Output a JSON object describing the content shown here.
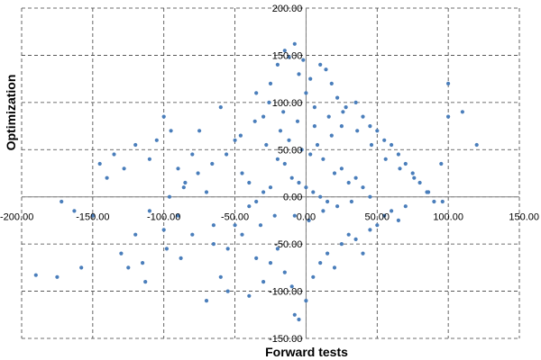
{
  "chart_data": {
    "type": "scatter",
    "xlabel": "Forward tests",
    "ylabel": "Optimization",
    "xlim": [
      -200,
      150
    ],
    "ylim": [
      -150,
      200
    ],
    "x_ticks": [
      -200,
      -150,
      -100,
      -50,
      0,
      50,
      100,
      150
    ],
    "y_ticks": [
      -150,
      -100,
      -50,
      0,
      50,
      100,
      150,
      200
    ],
    "x_tick_labels": [
      "-200.00",
      "-150.00",
      "-100.00",
      "-50.00",
      "0.00",
      "50.00",
      "100.00",
      "150.00"
    ],
    "y_tick_labels": [
      "-150.00",
      "-100.00",
      "-50.00",
      "0.00",
      "50.00",
      "100.00",
      "150.00",
      "200.00"
    ],
    "grid": true,
    "series": [
      {
        "color": "#4a7ebb",
        "points": [
          [
            -190,
            -83
          ],
          [
            -175,
            -85
          ],
          [
            -158,
            -75
          ],
          [
            -113,
            -90
          ],
          [
            -172,
            -5
          ],
          [
            -163,
            -15
          ],
          [
            -150,
            -20
          ],
          [
            -145,
            35
          ],
          [
            -140,
            20
          ],
          [
            -135,
            45
          ],
          [
            -128,
            30
          ],
          [
            -120,
            55
          ],
          [
            -110,
            40
          ],
          [
            -105,
            60
          ],
          [
            -100,
            85
          ],
          [
            -95,
            70
          ],
          [
            -90,
            30
          ],
          [
            -85,
            15
          ],
          [
            -80,
            45
          ],
          [
            -75,
            70
          ],
          [
            -70,
            5
          ],
          [
            -65,
            -30
          ],
          [
            -60,
            95
          ],
          [
            -55,
            -55
          ],
          [
            -50,
            60
          ],
          [
            -45,
            25
          ],
          [
            -40,
            -10
          ],
          [
            -35,
            110
          ],
          [
            -30,
            85
          ],
          [
            -25,
            120
          ],
          [
            -20,
            140
          ],
          [
            -15,
            155
          ],
          [
            -12,
            148
          ],
          [
            -8,
            162
          ],
          [
            -5,
            130
          ],
          [
            -2,
            145
          ],
          [
            0,
            110
          ],
          [
            3,
            125
          ],
          [
            6,
            95
          ],
          [
            10,
            140
          ],
          [
            14,
            135
          ],
          [
            18,
            120
          ],
          [
            22,
            105
          ],
          [
            28,
            95
          ],
          [
            35,
            100
          ],
          [
            40,
            85
          ],
          [
            45,
            75
          ],
          [
            50,
            70
          ],
          [
            55,
            60
          ],
          [
            60,
            55
          ],
          [
            65,
            45
          ],
          [
            70,
            35
          ],
          [
            75,
            25
          ],
          [
            80,
            15
          ],
          [
            85,
            5
          ],
          [
            90,
            -5
          ],
          [
            95,
            35
          ],
          [
            100,
            85
          ],
          [
            110,
            90
          ],
          [
            120,
            55
          ],
          [
            100,
            120
          ],
          [
            -20,
            -55
          ],
          [
            -15,
            -80
          ],
          [
            -10,
            -95
          ],
          [
            -8,
            -125
          ],
          [
            -5,
            -130
          ],
          [
            0,
            -110
          ],
          [
            5,
            -85
          ],
          [
            10,
            -70
          ],
          [
            15,
            -60
          ],
          [
            20,
            -75
          ],
          [
            25,
            -50
          ],
          [
            30,
            -40
          ],
          [
            35,
            -45
          ],
          [
            40,
            -60
          ],
          [
            45,
            -35
          ],
          [
            50,
            -30
          ],
          [
            55,
            -20
          ],
          [
            60,
            -15
          ],
          [
            65,
            -25
          ],
          [
            70,
            -10
          ],
          [
            -60,
            -85
          ],
          [
            -70,
            -110
          ],
          [
            -55,
            -100
          ],
          [
            -40,
            -105
          ],
          [
            -30,
            -90
          ],
          [
            -25,
            -70
          ],
          [
            -35,
            -65
          ],
          [
            -45,
            -40
          ],
          [
            -50,
            -30
          ],
          [
            -65,
            -50
          ],
          [
            -80,
            -40
          ],
          [
            -90,
            -20
          ],
          [
            -100,
            -35
          ],
          [
            -110,
            -15
          ],
          [
            -120,
            -40
          ],
          [
            -130,
            -60
          ],
          [
            -125,
            -75
          ],
          [
            -115,
            -70
          ],
          [
            -98,
            -55
          ],
          [
            -88,
            -65
          ],
          [
            -10,
            20
          ],
          [
            -5,
            15
          ],
          [
            0,
            10
          ],
          [
            5,
            5
          ],
          [
            10,
            0
          ],
          [
            15,
            -5
          ],
          [
            20,
            25
          ],
          [
            25,
            30
          ],
          [
            -15,
            35
          ],
          [
            -20,
            40
          ],
          [
            -25,
            10
          ],
          [
            -30,
            5
          ],
          [
            -35,
            -5
          ],
          [
            -40,
            15
          ],
          [
            30,
            15
          ],
          [
            35,
            20
          ],
          [
            40,
            10
          ],
          [
            45,
            0
          ],
          [
            -3,
            50
          ],
          [
            3,
            45
          ],
          [
            8,
            55
          ],
          [
            12,
            40
          ],
          [
            -12,
            60
          ],
          [
            -18,
            70
          ],
          [
            18,
            65
          ],
          [
            25,
            75
          ],
          [
            -28,
            55
          ],
          [
            -8,
            -20
          ],
          [
            2,
            -25
          ],
          [
            12,
            -15
          ],
          [
            22,
            -10
          ],
          [
            -22,
            -20
          ],
          [
            -32,
            -30
          ],
          [
            32,
            -5
          ],
          [
            -6,
            80
          ],
          [
            6,
            75
          ],
          [
            -16,
            90
          ],
          [
            16,
            85
          ],
          [
            -26,
            100
          ],
          [
            26,
            90
          ],
          [
            -36,
            80
          ],
          [
            36,
            70
          ],
          [
            -46,
            65
          ],
          [
            46,
            55
          ],
          [
            -56,
            45
          ],
          [
            56,
            40
          ],
          [
            -66,
            35
          ],
          [
            66,
            30
          ],
          [
            -76,
            25
          ],
          [
            76,
            20
          ],
          [
            -86,
            10
          ],
          [
            86,
            5
          ],
          [
            -96,
            0
          ],
          [
            96,
            -5
          ]
        ]
      }
    ]
  }
}
